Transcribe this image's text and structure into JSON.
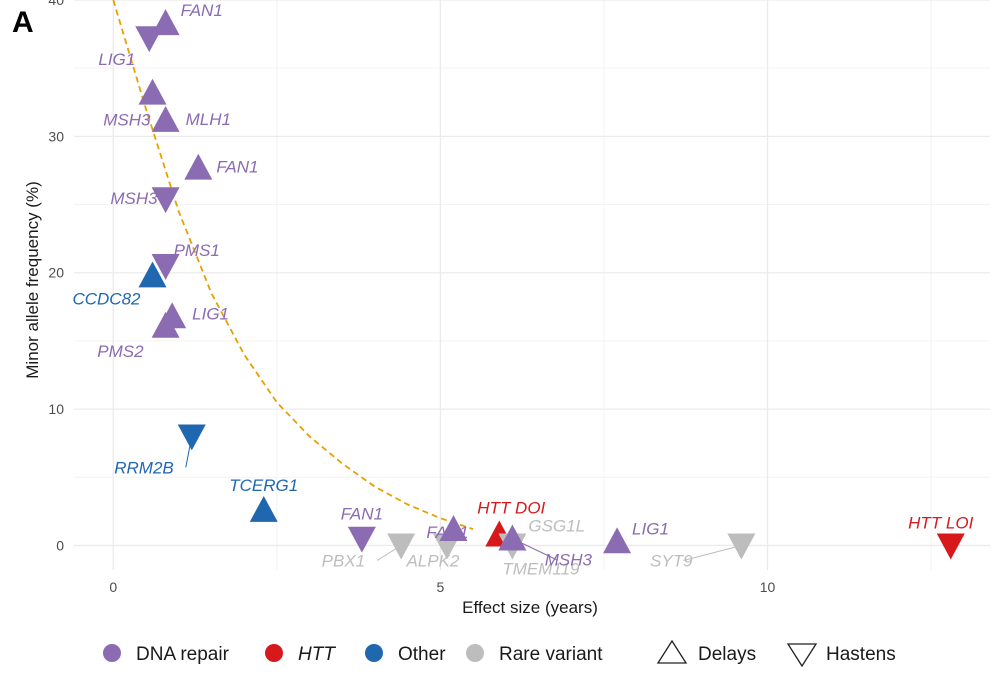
{
  "panel_label": "A",
  "colors": {
    "dna_repair": "#8b6bb1",
    "htt": "#d7191c",
    "other": "#1f68b0",
    "rare": "#bdbdbd",
    "curve": "#e6a100",
    "grid": "#ebebeb"
  },
  "legend": {
    "dna_repair": "DNA repair",
    "htt": "HTT",
    "other": "Other",
    "rare": "Rare variant",
    "delays": "Delays",
    "hastens": "Hastens"
  },
  "chart_data": {
    "type": "scatter",
    "xlabel": "Effect size (years)",
    "ylabel": "Minor allele frequency (%)",
    "xlim": [
      -0.6,
      13.4
    ],
    "ylim": [
      -1.8,
      40
    ],
    "x_ticks": [
      0,
      5,
      10
    ],
    "y_ticks": [
      0,
      10,
      20,
      30,
      40
    ],
    "grid": true,
    "legend_position": "bottom",
    "curve": {
      "type": "dashed",
      "x": [
        0,
        0.5,
        1,
        1.5,
        2,
        2.5,
        3,
        3.5,
        4,
        4.5,
        5,
        5.5
      ],
      "y": [
        40,
        32,
        24.5,
        18.5,
        14,
        10.5,
        8,
        6,
        4.3,
        3,
        2,
        1.2
      ]
    },
    "points": [
      {
        "label": "FAN1",
        "group": "dna_repair",
        "direction": "delays",
        "x": 0.8,
        "y": 38.3
      },
      {
        "label": "LIG1",
        "group": "dna_repair",
        "direction": "hastens",
        "x": 0.55,
        "y": 37.2
      },
      {
        "label": "MSH3",
        "group": "dna_repair",
        "direction": "delays",
        "x": 0.6,
        "y": 33.2
      },
      {
        "label": "MLH1",
        "group": "dna_repair",
        "direction": "delays",
        "x": 0.8,
        "y": 31.2
      },
      {
        "label": "FAN1",
        "group": "dna_repair",
        "direction": "delays",
        "x": 1.3,
        "y": 27.7
      },
      {
        "label": "MSH3",
        "group": "dna_repair",
        "direction": "hastens",
        "x": 0.8,
        "y": 25.4
      },
      {
        "label": "PMS1",
        "group": "dna_repair",
        "direction": "hastens",
        "x": 0.8,
        "y": 20.5
      },
      {
        "label": "CCDC82",
        "group": "other",
        "direction": "delays",
        "x": 0.6,
        "y": 19.8
      },
      {
        "label": "LIG1",
        "group": "dna_repair",
        "direction": "delays",
        "x": 0.9,
        "y": 16.8
      },
      {
        "label": "PMS2",
        "group": "dna_repair",
        "direction": "delays",
        "x": 0.8,
        "y": 16.1
      },
      {
        "label": "RRM2B",
        "group": "other",
        "direction": "hastens",
        "x": 1.2,
        "y": 8.0
      },
      {
        "label": "TCERG1",
        "group": "other",
        "direction": "delays",
        "x": 2.3,
        "y": 2.6
      },
      {
        "label": "FAN1",
        "group": "dna_repair",
        "direction": "hastens",
        "x": 3.8,
        "y": 0.5
      },
      {
        "label": "PBX1",
        "group": "rare",
        "direction": "hastens",
        "x": 4.4,
        "y": 0.0
      },
      {
        "label": "ALPK2",
        "group": "rare",
        "direction": "hastens",
        "x": 5.1,
        "y": 0.0
      },
      {
        "label": "FAN1",
        "group": "dna_repair",
        "direction": "delays",
        "x": 5.2,
        "y": 1.2
      },
      {
        "label": "HTT DOI",
        "group": "htt",
        "direction": "delays",
        "x": 5.9,
        "y": 0.8
      },
      {
        "label": "TMEM119",
        "group": "rare",
        "direction": "hastens",
        "x": 6.1,
        "y": 0.0
      },
      {
        "label": "GSG1L",
        "group": "rare",
        "direction": "delays",
        "x": 6.1,
        "y": 0.5
      },
      {
        "label": "MSH3",
        "group": "dna_repair",
        "direction": "delays",
        "x": 6.1,
        "y": 0.5
      },
      {
        "label": "LIG1",
        "group": "dna_repair",
        "direction": "delays",
        "x": 7.7,
        "y": 0.3
      },
      {
        "label": "SYT9",
        "group": "rare",
        "direction": "hastens",
        "x": 9.6,
        "y": 0.0
      },
      {
        "label": "HTT LOI",
        "group": "htt",
        "direction": "hastens",
        "x": 12.8,
        "y": 0.0
      }
    ]
  }
}
